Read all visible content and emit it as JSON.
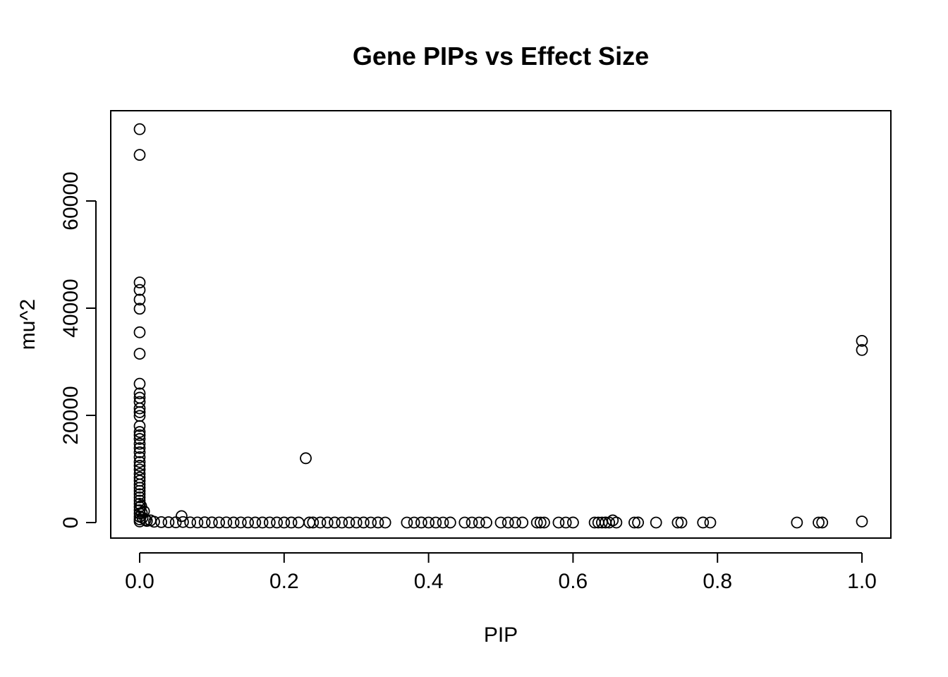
{
  "chart_data": {
    "type": "scatter",
    "title": "Gene PIPs vs Effect Size",
    "xlabel": "PIP",
    "ylabel": "mu^2",
    "xlim": [
      0.0,
      1.0
    ],
    "ylim": [
      0,
      73000
    ],
    "xticks": [
      "0.0",
      "0.2",
      "0.4",
      "0.6",
      "0.8",
      "1.0"
    ],
    "xtick_values": [
      0.0,
      0.2,
      0.4,
      0.6,
      0.8,
      1.0
    ],
    "yticks": [
      "0",
      "20000",
      "40000",
      "60000"
    ],
    "ytick_values": [
      0,
      20000,
      40000,
      60000
    ],
    "grid": false,
    "marker": "open-circle",
    "color": "#000000",
    "points": [
      [
        0.0,
        73400
      ],
      [
        0.0,
        68600
      ],
      [
        0.0,
        44800
      ],
      [
        0.0,
        43400
      ],
      [
        0.0,
        41600
      ],
      [
        0.0,
        39900
      ],
      [
        0.0,
        35500
      ],
      [
        0.0,
        31500
      ],
      [
        0.0,
        25900
      ],
      [
        0.0,
        24100
      ],
      [
        0.0,
        23300
      ],
      [
        0.0,
        22500
      ],
      [
        0.0,
        21300
      ],
      [
        0.0,
        20600
      ],
      [
        0.0,
        19900
      ],
      [
        0.0,
        18000
      ],
      [
        0.0,
        16900
      ],
      [
        0.0,
        16300
      ],
      [
        0.0,
        15600
      ],
      [
        0.0,
        14700
      ],
      [
        0.0,
        13900
      ],
      [
        0.0,
        13100
      ],
      [
        0.0,
        12200
      ],
      [
        0.0,
        11300
      ],
      [
        0.0,
        10600
      ],
      [
        0.0,
        9900
      ],
      [
        0.0,
        9100
      ],
      [
        0.0,
        8400
      ],
      [
        0.0,
        7800
      ],
      [
        0.0,
        7100
      ],
      [
        0.0,
        6500
      ],
      [
        0.0,
        5900
      ],
      [
        0.0,
        5300
      ],
      [
        0.0,
        4700
      ],
      [
        0.0,
        4100
      ],
      [
        0.0,
        3500
      ],
      [
        0.0,
        2900
      ],
      [
        0.0,
        2300
      ],
      [
        0.0,
        1700
      ],
      [
        0.0,
        1100
      ],
      [
        0.0,
        600
      ],
      [
        0.0,
        200
      ],
      [
        0.002,
        3100
      ],
      [
        0.003,
        1800
      ],
      [
        0.004,
        900
      ],
      [
        0.006,
        2100
      ],
      [
        0.008,
        500
      ],
      [
        0.01,
        300
      ],
      [
        0.015,
        400
      ],
      [
        0.02,
        150
      ],
      [
        0.03,
        80
      ],
      [
        0.04,
        60
      ],
      [
        0.05,
        40
      ],
      [
        0.058,
        1200
      ],
      [
        0.06,
        100
      ],
      [
        0.07,
        30
      ],
      [
        0.08,
        20
      ],
      [
        0.09,
        40
      ],
      [
        0.1,
        25
      ],
      [
        0.11,
        15
      ],
      [
        0.12,
        30
      ],
      [
        0.13,
        10
      ],
      [
        0.14,
        20
      ],
      [
        0.15,
        15
      ],
      [
        0.16,
        10
      ],
      [
        0.17,
        8
      ],
      [
        0.18,
        12
      ],
      [
        0.19,
        5
      ],
      [
        0.2,
        10
      ],
      [
        0.21,
        8
      ],
      [
        0.22,
        6
      ],
      [
        0.23,
        12000
      ],
      [
        0.235,
        10
      ],
      [
        0.24,
        5
      ],
      [
        0.25,
        8
      ],
      [
        0.26,
        5
      ],
      [
        0.27,
        6
      ],
      [
        0.28,
        4
      ],
      [
        0.29,
        5
      ],
      [
        0.3,
        3
      ],
      [
        0.31,
        6
      ],
      [
        0.32,
        4
      ],
      [
        0.33,
        5
      ],
      [
        0.34,
        3
      ],
      [
        0.37,
        4
      ],
      [
        0.38,
        3
      ],
      [
        0.39,
        5
      ],
      [
        0.4,
        3
      ],
      [
        0.41,
        4
      ],
      [
        0.42,
        3
      ],
      [
        0.43,
        5
      ],
      [
        0.45,
        3
      ],
      [
        0.46,
        4
      ],
      [
        0.47,
        3
      ],
      [
        0.48,
        5
      ],
      [
        0.5,
        3
      ],
      [
        0.51,
        4
      ],
      [
        0.52,
        3
      ],
      [
        0.53,
        5
      ],
      [
        0.55,
        3
      ],
      [
        0.555,
        4
      ],
      [
        0.56,
        3
      ],
      [
        0.58,
        4
      ],
      [
        0.59,
        3
      ],
      [
        0.6,
        5
      ],
      [
        0.63,
        3
      ],
      [
        0.635,
        4
      ],
      [
        0.64,
        3
      ],
      [
        0.645,
        5
      ],
      [
        0.65,
        3
      ],
      [
        0.655,
        400
      ],
      [
        0.66,
        4
      ],
      [
        0.685,
        3
      ],
      [
        0.69,
        5
      ],
      [
        0.715,
        3
      ],
      [
        0.745,
        4
      ],
      [
        0.75,
        3
      ],
      [
        0.78,
        5
      ],
      [
        0.79,
        3
      ],
      [
        0.91,
        4
      ],
      [
        0.94,
        3
      ],
      [
        0.945,
        5
      ],
      [
        1.0,
        33900
      ],
      [
        1.0,
        32200
      ],
      [
        1.0,
        200
      ]
    ]
  }
}
